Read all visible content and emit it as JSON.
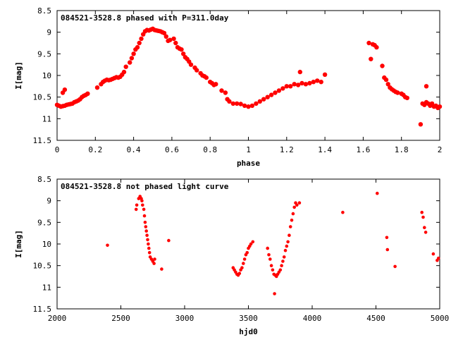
{
  "chart_data": [
    {
      "type": "scatter",
      "title": "084521-3528.8 phased with P=311.0day",
      "xlabel": "phase",
      "ylabel": "I[mag]",
      "xlim": [
        0,
        2
      ],
      "ylim": [
        11.5,
        8.5
      ],
      "y_inverted": true,
      "xticks": [
        0,
        0.2,
        0.4,
        0.6,
        0.8,
        1,
        1.2,
        1.4,
        1.6,
        1.8,
        2
      ],
      "xtick_labels": [
        "0",
        "0.2",
        "0.4",
        "0.6",
        "0.8",
        "1",
        "1.2",
        "1.4",
        "1.6",
        "1.8",
        "2"
      ],
      "yticks": [
        8.5,
        9,
        9.5,
        10,
        10.5,
        11,
        11.5
      ],
      "ytick_labels": [
        "8.5",
        "9",
        "9.5",
        "10",
        "10.5",
        "11",
        "11.5"
      ],
      "grid": false,
      "legend": "none",
      "marker_color": "#ff0000",
      "series": [
        {
          "x": [
            0.0,
            0.01,
            0.02,
            0.03,
            0.04,
            0.05,
            0.06,
            0.07,
            0.08,
            0.09,
            0.1,
            0.11,
            0.12,
            0.13,
            0.14,
            0.15,
            0.16,
            0.03,
            0.04,
            0.21,
            0.23,
            0.24,
            0.25,
            0.26,
            0.27,
            0.28,
            0.29,
            0.3,
            0.31,
            0.32,
            0.33,
            0.34,
            0.35,
            0.36,
            0.38,
            0.39,
            0.4,
            0.41,
            0.42,
            0.43,
            0.44,
            0.45,
            0.46,
            0.47,
            0.48,
            0.49,
            0.5,
            0.51,
            0.52,
            0.53,
            0.54,
            0.55,
            0.56,
            0.57,
            0.58,
            0.59,
            0.61,
            0.62,
            0.63,
            0.64,
            0.65,
            0.66,
            0.67,
            0.68,
            0.69,
            0.7,
            0.72,
            0.73,
            0.75,
            0.76,
            0.77,
            0.78,
            0.8,
            0.81,
            0.82,
            0.83,
            0.86,
            0.88,
            0.89,
            0.9,
            0.92,
            0.94,
            0.96,
            0.98,
            1.0,
            1.02,
            1.04,
            1.06,
            1.08,
            1.1,
            1.12,
            1.14,
            1.16,
            1.18,
            1.2,
            1.22,
            1.24,
            1.26,
            1.28,
            1.3,
            1.32,
            1.34,
            1.36,
            1.38,
            1.27,
            1.4,
            1.63,
            1.64,
            1.65,
            1.66,
            1.67,
            1.7,
            1.71,
            1.72,
            1.73,
            1.74,
            1.75,
            1.76,
            1.77,
            1.78,
            1.8,
            1.81,
            1.82,
            1.83,
            1.9,
            1.91,
            1.92,
            1.93,
            1.94,
            1.95,
            1.96,
            1.97,
            1.98,
            1.99,
            1.93,
            2.0
          ],
          "y": [
            10.68,
            10.7,
            10.72,
            10.71,
            10.7,
            10.68,
            10.67,
            10.66,
            10.65,
            10.62,
            10.6,
            10.58,
            10.55,
            10.5,
            10.47,
            10.45,
            10.42,
            10.4,
            10.33,
            10.28,
            10.2,
            10.15,
            10.12,
            10.1,
            10.11,
            10.1,
            10.08,
            10.06,
            10.04,
            10.05,
            10.03,
            9.98,
            9.92,
            9.8,
            9.7,
            9.6,
            9.5,
            9.4,
            9.35,
            9.25,
            9.15,
            9.05,
            8.98,
            8.95,
            8.96,
            8.94,
            8.92,
            8.95,
            8.96,
            8.97,
            8.98,
            9.0,
            9.02,
            9.1,
            9.2,
            9.18,
            9.15,
            9.25,
            9.35,
            9.38,
            9.4,
            9.5,
            9.58,
            9.62,
            9.68,
            9.75,
            9.82,
            9.88,
            9.95,
            10.0,
            10.02,
            10.05,
            10.15,
            10.18,
            10.22,
            10.2,
            10.35,
            10.4,
            10.55,
            10.6,
            10.65,
            10.65,
            10.66,
            10.7,
            10.72,
            10.7,
            10.65,
            10.6,
            10.55,
            10.5,
            10.45,
            10.4,
            10.35,
            10.3,
            10.25,
            10.25,
            10.2,
            10.22,
            10.18,
            10.2,
            10.18,
            10.15,
            10.12,
            10.15,
            9.92,
            9.98,
            9.25,
            9.62,
            9.28,
            9.3,
            9.35,
            9.78,
            10.05,
            10.1,
            10.2,
            10.28,
            10.32,
            10.35,
            10.38,
            10.4,
            10.42,
            10.45,
            10.5,
            10.52,
            11.13,
            10.65,
            10.68,
            10.62,
            10.65,
            10.7,
            10.65,
            10.72,
            10.7,
            10.75,
            10.25,
            10.72
          ]
        }
      ]
    },
    {
      "type": "scatter",
      "title": "084521-3528.8 not phased light curve",
      "xlabel": "hjd0",
      "ylabel": "I[mag]",
      "xlim": [
        2000,
        5000
      ],
      "ylim": [
        11.5,
        8.5
      ],
      "y_inverted": true,
      "xticks": [
        2000,
        2500,
        3000,
        3500,
        4000,
        4500,
        5000
      ],
      "xtick_labels": [
        "2000",
        "2500",
        "3000",
        "3500",
        "4000",
        "4500",
        "5000"
      ],
      "yticks": [
        8.5,
        9,
        9.5,
        10,
        10.5,
        11,
        11.5
      ],
      "ytick_labels": [
        "8.5",
        "9",
        "9.5",
        "10",
        "10.5",
        "11",
        "11.5"
      ],
      "grid": false,
      "legend": "none",
      "marker_color": "#ff0000",
      "series": [
        {
          "x": [
            2395,
            2620,
            2625,
            2640,
            2650,
            2660,
            2665,
            2670,
            2680,
            2685,
            2690,
            2695,
            2700,
            2705,
            2710,
            2715,
            2720,
            2725,
            2730,
            2740,
            2750,
            2760,
            2765,
            2820,
            2875,
            3380,
            3390,
            3400,
            3410,
            3420,
            3430,
            3440,
            3450,
            3460,
            3470,
            3480,
            3490,
            3500,
            3510,
            3520,
            3535,
            3650,
            3660,
            3670,
            3680,
            3690,
            3700,
            3710,
            3720,
            3730,
            3740,
            3750,
            3760,
            3770,
            3780,
            3790,
            3800,
            3810,
            3820,
            3830,
            3840,
            3850,
            3860,
            3870,
            3880,
            3900,
            3705,
            4240,
            4510,
            4585,
            4590,
            4650,
            4860,
            4870,
            4880,
            4890,
            4950,
            4980,
            4990
          ],
          "y": [
            10.03,
            9.2,
            9.1,
            8.95,
            8.9,
            8.95,
            9.0,
            9.1,
            9.2,
            9.35,
            9.5,
            9.6,
            9.7,
            9.8,
            9.9,
            10.0,
            10.1,
            10.2,
            10.3,
            10.35,
            10.4,
            10.45,
            10.35,
            10.58,
            9.92,
            10.55,
            10.6,
            10.65,
            10.7,
            10.72,
            10.68,
            10.6,
            10.55,
            10.45,
            10.35,
            10.25,
            10.2,
            10.1,
            10.05,
            10.0,
            9.95,
            10.1,
            10.25,
            10.35,
            10.5,
            10.6,
            10.7,
            10.72,
            10.75,
            10.7,
            10.65,
            10.6,
            10.5,
            10.4,
            10.3,
            10.15,
            10.05,
            9.95,
            9.8,
            9.6,
            9.45,
            9.3,
            9.15,
            9.05,
            9.1,
            9.05,
            11.15,
            9.27,
            8.83,
            9.85,
            10.13,
            10.52,
            9.27,
            9.38,
            9.62,
            9.73,
            10.23,
            10.38,
            10.33
          ]
        }
      ]
    }
  ]
}
